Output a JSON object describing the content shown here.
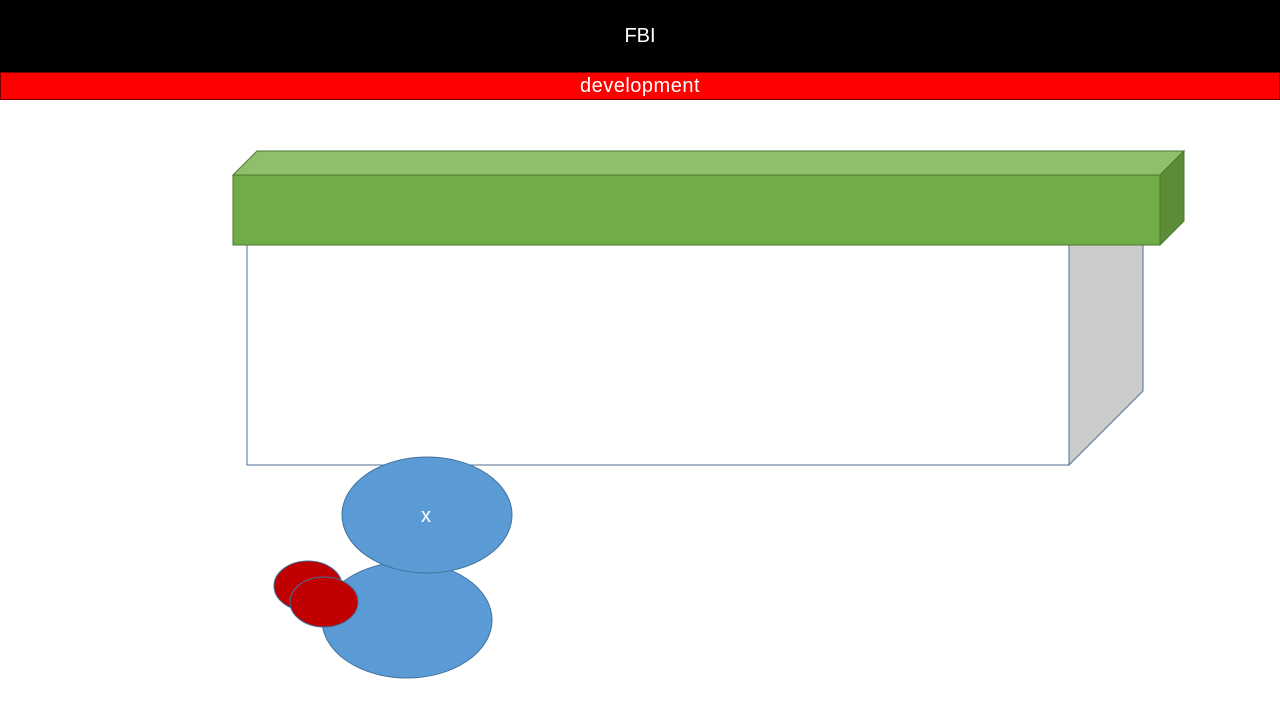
{
  "header": {
    "title": "FBI",
    "subtitle": "development"
  },
  "diagram": {
    "circle_label": "x",
    "colors": {
      "header_bg": "#000000",
      "subtitle_bg": "#ff0000",
      "beam_front": "#70ad47",
      "beam_top": "#8fbf6c",
      "beam_side": "#5b8c38",
      "box_side": "#cccccc",
      "circle_blue": "#5b9bd5",
      "circle_red": "#c00000"
    }
  }
}
